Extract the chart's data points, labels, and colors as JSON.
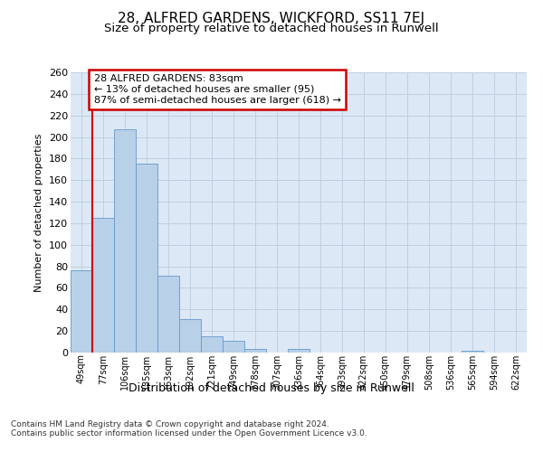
{
  "title": "28, ALFRED GARDENS, WICKFORD, SS11 7EJ",
  "subtitle": "Size of property relative to detached houses in Runwell",
  "xlabel": "Distribution of detached houses by size in Runwell",
  "ylabel": "Number of detached properties",
  "categories": [
    "49sqm",
    "77sqm",
    "106sqm",
    "135sqm",
    "163sqm",
    "192sqm",
    "221sqm",
    "249sqm",
    "278sqm",
    "307sqm",
    "336sqm",
    "364sqm",
    "393sqm",
    "422sqm",
    "450sqm",
    "479sqm",
    "508sqm",
    "536sqm",
    "565sqm",
    "594sqm",
    "622sqm"
  ],
  "values": [
    76,
    125,
    207,
    175,
    71,
    31,
    15,
    11,
    3,
    0,
    3,
    0,
    0,
    0,
    0,
    0,
    0,
    0,
    2,
    0,
    0
  ],
  "bar_color": "#b8d0e8",
  "bar_edge_color": "#6699cc",
  "grid_color": "#c0cfe0",
  "axes_background": "#dce8f5",
  "annotation_text": "28 ALFRED GARDENS: 83sqm\n← 13% of detached houses are smaller (95)\n87% of semi-detached houses are larger (618) →",
  "annotation_box_facecolor": "#ffffff",
  "annotation_box_edge": "#cc0000",
  "vline_x": 0.5,
  "vline_color": "#cc0000",
  "ylim": [
    0,
    260
  ],
  "yticks": [
    0,
    20,
    40,
    60,
    80,
    100,
    120,
    140,
    160,
    180,
    200,
    220,
    240,
    260
  ],
  "footer_text": "Contains HM Land Registry data © Crown copyright and database right 2024.\nContains public sector information licensed under the Open Government Licence v3.0.",
  "title_fontsize": 11,
  "subtitle_fontsize": 9.5,
  "xlabel_fontsize": 9,
  "ylabel_fontsize": 8,
  "tick_fontsize": 8,
  "annotation_fontsize": 8,
  "footer_fontsize": 6.5
}
